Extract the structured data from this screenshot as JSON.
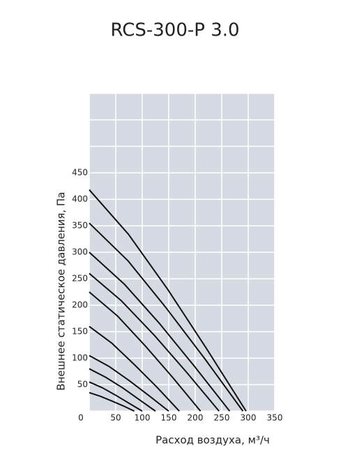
{
  "chart_data": {
    "type": "line",
    "title": "RCS-300-P 3.0",
    "x_label": "Расход воздуха, м³/ч",
    "y_label": "Внешнее статическое давления, Па",
    "xlim": [
      0,
      350
    ],
    "ylim": [
      0,
      600
    ],
    "xticks": [
      0,
      50,
      100,
      150,
      200,
      250,
      300,
      350
    ],
    "yticks": [
      0,
      50,
      100,
      150,
      200,
      250,
      300,
      350,
      400,
      450
    ],
    "ygrid": [
      500,
      550,
      600
    ],
    "grid": true,
    "background": "#d6dae2",
    "color": "#111111",
    "series": [
      {
        "x": [
          0,
          21,
          43,
          64,
          85
        ],
        "values": [
          35,
          28,
          19,
          10,
          0
        ]
      },
      {
        "x": [
          0,
          25,
          50,
          75,
          100
        ],
        "values": [
          55,
          44,
          30,
          15,
          0
        ]
      },
      {
        "x": [
          0,
          31,
          63,
          94,
          125
        ],
        "values": [
          80,
          64,
          44,
          22,
          0
        ]
      },
      {
        "x": [
          0,
          38,
          75,
          113,
          150
        ],
        "values": [
          105,
          84,
          58,
          29,
          0
        ]
      },
      {
        "x": [
          0,
          43,
          85,
          128,
          170
        ],
        "values": [
          160,
          128,
          88,
          45,
          0
        ]
      },
      {
        "x": [
          0,
          53,
          105,
          158,
          210
        ],
        "values": [
          225,
          180,
          124,
          63,
          0
        ]
      },
      {
        "x": [
          0,
          61,
          123,
          184,
          245
        ],
        "values": [
          260,
          208,
          143,
          73,
          0
        ]
      },
      {
        "x": [
          0,
          66,
          133,
          199,
          265
        ],
        "values": [
          300,
          240,
          165,
          84,
          0
        ]
      },
      {
        "x": [
          0,
          73,
          145,
          218,
          290
        ],
        "values": [
          355,
          284,
          195,
          99,
          0
        ]
      },
      {
        "x": [
          0,
          74,
          148,
          222,
          296
        ],
        "values": [
          418,
          334,
          230,
          117,
          0
        ]
      }
    ]
  }
}
